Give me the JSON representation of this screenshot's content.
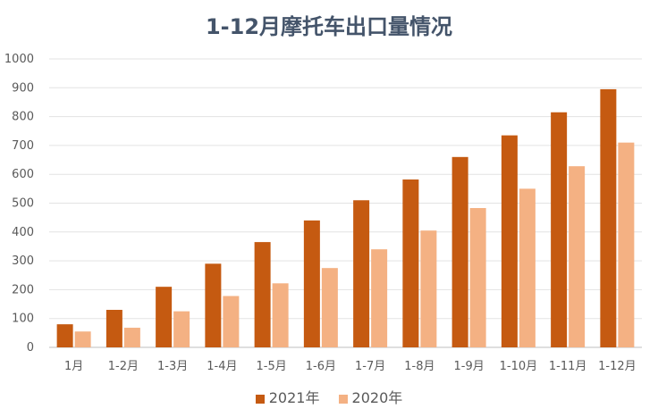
{
  "chart_data": {
    "type": "bar",
    "title": "1-12月摩托车出口量情况",
    "categories": [
      "1月",
      "1-2月",
      "1-3月",
      "1-4月",
      "1-5月",
      "1-6月",
      "1-7月",
      "1-8月",
      "1-9月",
      "1-10月",
      "1-11月",
      "1-12月"
    ],
    "series": [
      {
        "name": "2021年",
        "color": "#c55a11",
        "values": [
          80,
          130,
          210,
          290,
          365,
          440,
          510,
          582,
          660,
          735,
          815,
          895
        ]
      },
      {
        "name": "2020年",
        "color": "#f4b183",
        "values": [
          55,
          68,
          125,
          178,
          222,
          275,
          340,
          405,
          483,
          550,
          628,
          710
        ]
      }
    ],
    "ylim": [
      0,
      1000
    ],
    "yticks": [
      0,
      100,
      200,
      300,
      400,
      500,
      600,
      700,
      800,
      900,
      1000
    ],
    "grid": true,
    "legend": "bottom"
  }
}
